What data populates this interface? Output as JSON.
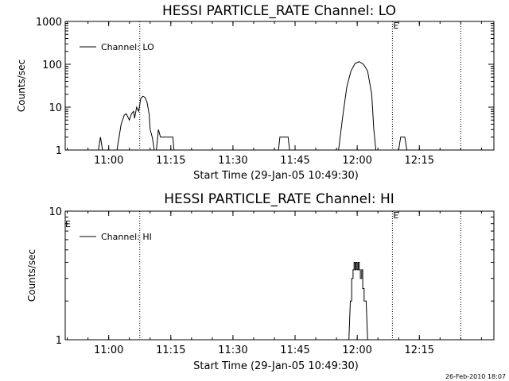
{
  "page": {
    "footer_timestamp": "26-Feb-2010 18:07"
  },
  "chart_data": [
    {
      "type": "line",
      "title": "HESSI PARTICLE_RATE Channel: LO",
      "xlabel": "Start Time (29-Jan-05 10:49:30)",
      "ylabel": "Counts/sec",
      "y_scale": "log",
      "xlim": [
        "10:49:30",
        "12:33:00"
      ],
      "ylim": [
        1,
        1000
      ],
      "x_ticks": [
        "11:00",
        "11:15",
        "11:30",
        "11:45",
        "12:00",
        "12:15"
      ],
      "y_ticks": [
        "1",
        "10",
        "100",
        "1000"
      ],
      "legend": "top-left",
      "event_lines": [
        {
          "time": "11:07:30",
          "label": ""
        },
        {
          "time": "12:08:30",
          "label": "E"
        },
        {
          "time": "12:25:00",
          "label": ""
        }
      ],
      "series": [
        {
          "name": "Channel: LO",
          "segments": [
            [
              [
                "10:57:30",
                1
              ],
              [
                "10:58:00",
                2
              ],
              [
                "10:58:30",
                1
              ]
            ],
            [
              [
                "11:02:00",
                1
              ],
              [
                "11:03:00",
                4
              ],
              [
                "11:03:45",
                6.5
              ],
              [
                "11:04:15",
                7
              ],
              [
                "11:05:00",
                5
              ],
              [
                "11:05:30",
                7
              ],
              [
                "11:06:00",
                8
              ],
              [
                "11:06:15",
                5.5
              ],
              [
                "11:06:45",
                10
              ],
              [
                "11:07:15",
                8
              ],
              [
                "11:07:45",
                16
              ],
              [
                "11:08:15",
                18
              ],
              [
                "11:08:45",
                17
              ],
              [
                "11:09:15",
                13
              ],
              [
                "11:09:45",
                7
              ],
              [
                "11:10:00",
                3
              ],
              [
                "11:10:30",
                2
              ],
              [
                "11:11:00",
                1
              ]
            ],
            [
              [
                "11:11:30",
                1
              ],
              [
                "11:12:00",
                3
              ],
              [
                "11:12:30",
                2
              ],
              [
                "11:13:00",
                2
              ],
              [
                "11:14:00",
                2
              ],
              [
                "11:15:00",
                2
              ],
              [
                "11:15:30",
                2
              ],
              [
                "11:15:45",
                1
              ]
            ],
            [
              [
                "11:41:00",
                1
              ],
              [
                "11:41:20",
                2
              ],
              [
                "11:43:20",
                2
              ],
              [
                "11:43:40",
                1
              ]
            ],
            [
              [
                "11:55:30",
                1
              ],
              [
                "11:56:30",
                6
              ],
              [
                "11:57:30",
                30
              ],
              [
                "11:58:30",
                70
              ],
              [
                "11:59:30",
                105
              ],
              [
                "12:00:30",
                115
              ],
              [
                "12:01:30",
                100
              ],
              [
                "12:02:30",
                70
              ],
              [
                "12:03:30",
                20
              ],
              [
                "12:04:00",
                3
              ],
              [
                "12:04:30",
                1
              ]
            ],
            [
              [
                "12:10:00",
                1
              ],
              [
                "12:10:30",
                2
              ],
              [
                "12:11:30",
                2
              ],
              [
                "12:12:00",
                1
              ]
            ]
          ]
        }
      ]
    },
    {
      "type": "line",
      "title": "HESSI PARTICLE_RATE Channel: HI",
      "xlabel": "Start Time (29-Jan-05 10:49:30)",
      "ylabel": "Counts/sec",
      "y_scale": "log",
      "xlim": [
        "10:49:30",
        "12:33:00"
      ],
      "ylim": [
        1,
        10
      ],
      "x_ticks": [
        "11:00",
        "11:15",
        "11:30",
        "11:45",
        "12:00",
        "12:15"
      ],
      "y_ticks": [
        "1",
        "10"
      ],
      "legend": "top-left",
      "event_lines": [
        {
          "time": "11:07:30",
          "label": ""
        },
        {
          "time": "12:08:30",
          "label": "E"
        },
        {
          "time": "12:25:00",
          "label": ""
        }
      ],
      "corner_label": "E",
      "series": [
        {
          "name": "Channel: HI",
          "segments": [
            [
              [
                "11:58:00",
                1
              ],
              [
                "11:58:20",
                2
              ],
              [
                "11:58:40",
                2
              ],
              [
                "11:58:40",
                3
              ],
              [
                "11:59:00",
                3
              ],
              [
                "11:59:00",
                3.5
              ],
              [
                "11:59:15",
                3.5
              ],
              [
                "11:59:15",
                4
              ],
              [
                "11:59:30",
                4
              ],
              [
                "11:59:30",
                3.5
              ],
              [
                "11:59:45",
                3.5
              ],
              [
                "11:59:45",
                4
              ],
              [
                "12:00:00",
                4
              ],
              [
                "12:00:00",
                3.5
              ],
              [
                "12:00:15",
                3.5
              ],
              [
                "12:00:15",
                4
              ],
              [
                "12:00:30",
                4
              ],
              [
                "12:00:30",
                3.5
              ],
              [
                "12:00:45",
                3.5
              ],
              [
                "12:00:45",
                3
              ],
              [
                "12:01:05",
                3
              ],
              [
                "12:01:05",
                3.5
              ],
              [
                "12:01:20",
                3.5
              ],
              [
                "12:01:20",
                2.5
              ],
              [
                "12:01:40",
                2.5
              ],
              [
                "12:01:40",
                2
              ],
              [
                "12:02:10",
                2
              ],
              [
                "12:02:30",
                1
              ]
            ]
          ]
        }
      ]
    }
  ]
}
